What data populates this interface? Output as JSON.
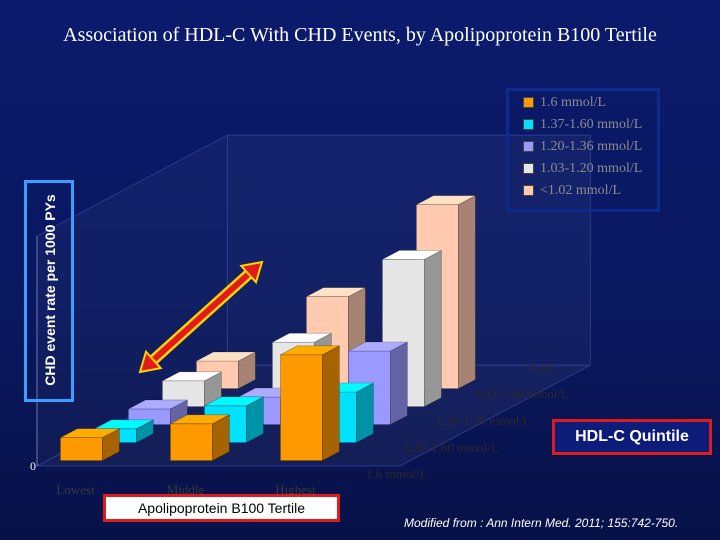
{
  "slide": {
    "title": "Association of HDL-C With CHD Events, by Apolipoprotein B100 Tertile",
    "citation": "Modified from : Ann Intern Med. 2011; 155:742-750.",
    "hdl_box_label": "HDL-C Quintile"
  },
  "chart_data": {
    "type": "bar",
    "subtype": "3d-grouped",
    "title": "Association of HDL-C With CHD Events, by Apolipoprotein B100 Tertile",
    "xlabel": "Apolipoprotein B100 Tertile",
    "ylabel": "CHD event rate per 1000 PYs",
    "zlabel": "HDL-C Quintile",
    "categories": [
      "Lowest",
      "Middle",
      "Highest"
    ],
    "y_ticks": [
      "0"
    ],
    "depth_labels": [
      "1.6 mmol/L",
      "1.37-1.60 mmol/L",
      "1.20-1.36 mmol/L",
      "1.03-1.20 mmol/L",
      "<1.02"
    ],
    "series": [
      {
        "name": "1.6 mmol/L",
        "color": "#ff9900",
        "values": [
          2.5,
          4.0,
          11.5
        ]
      },
      {
        "name": "1.37-1.60 mmol/L",
        "color": "#00e0ff",
        "values": [
          1.5,
          4.0,
          5.5
        ]
      },
      {
        "name": "1.20-1.36 mmol/L",
        "color": "#9a99ff",
        "values": [
          1.7,
          3.0,
          8.0
        ]
      },
      {
        "name": "1.03-1.20 mmol/L",
        "color": "#e6e6e6",
        "values": [
          2.8,
          7.0,
          16.0
        ]
      },
      {
        "name": "<1.02 mmol/L",
        "color": "#ffcab0",
        "values": [
          3.0,
          10.0,
          20.0
        ]
      }
    ],
    "legend_position": "top-right",
    "grid": false
  }
}
